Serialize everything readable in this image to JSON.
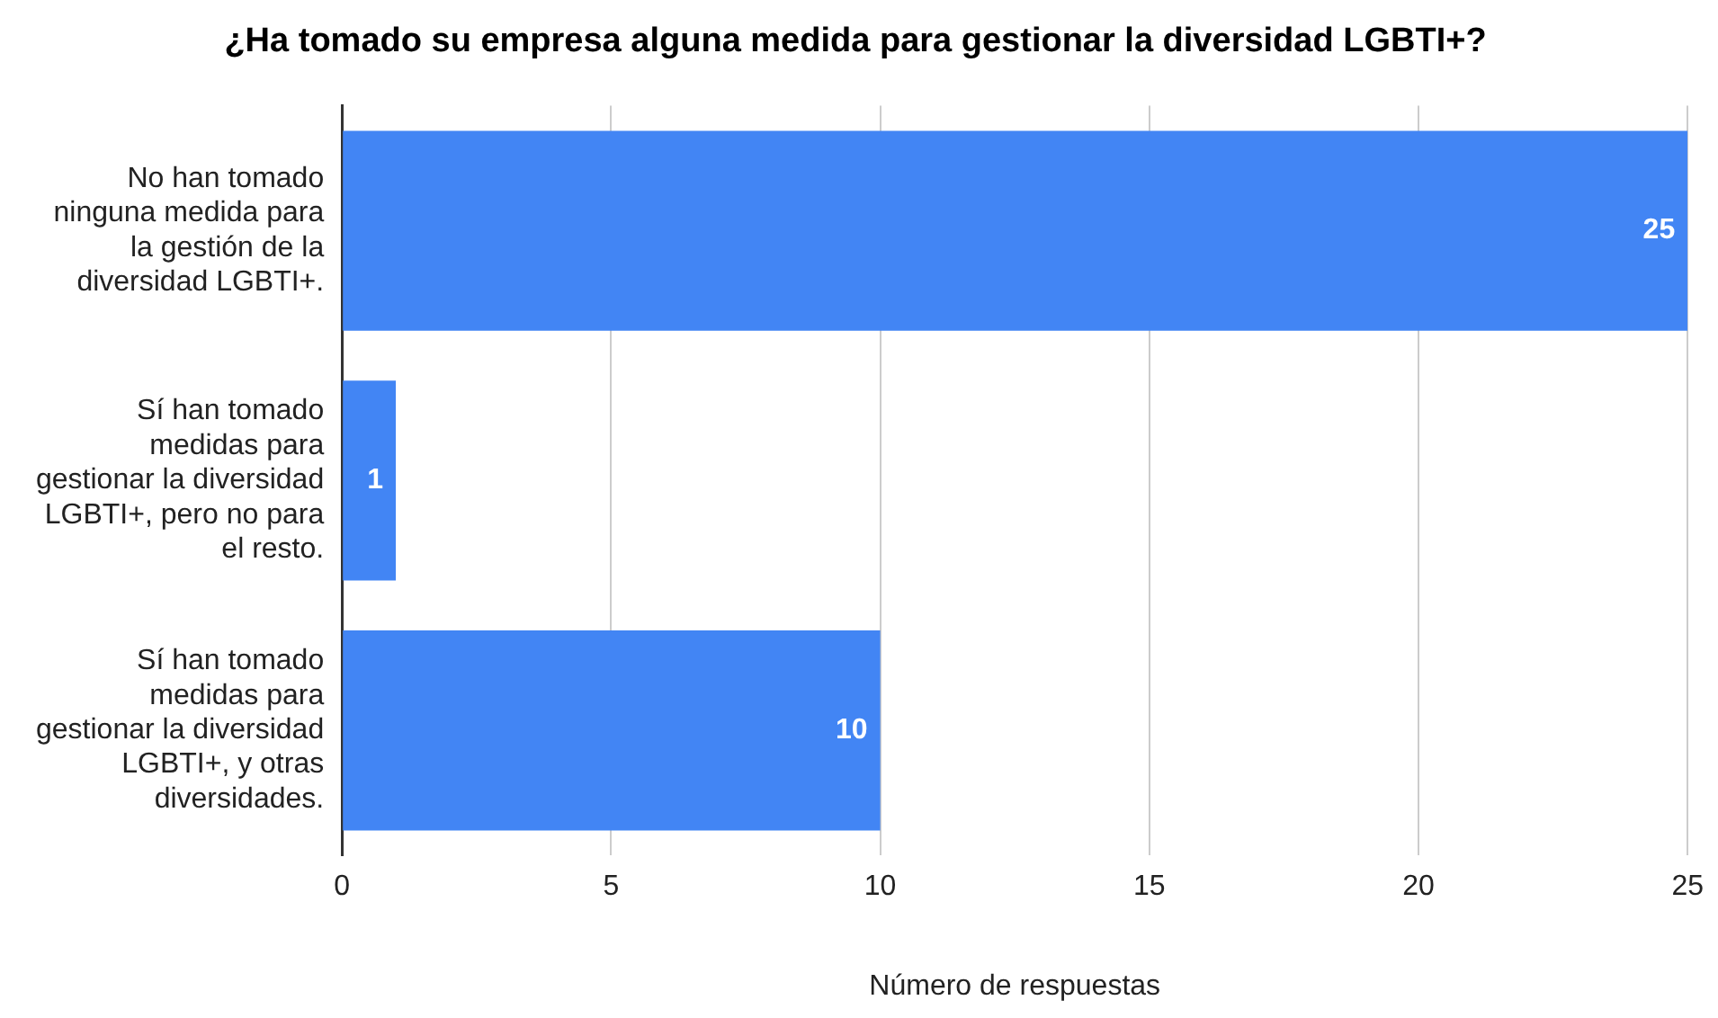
{
  "chart_data": {
    "type": "bar",
    "orientation": "horizontal",
    "title": "¿Ha tomado su empresa alguna medida para gestionar la diversidad LGBTI+?",
    "xlabel": "Número de respuestas",
    "categories": [
      "No han tomado ninguna medida para la gestión de la diversidad LGBTI+.",
      "Sí han tomado medidas para gestionar la diversidad LGBTI+, pero no para el resto.",
      "Sí han tomado medidas para gestionar la diversidad LGBTI+, y otras diversidades."
    ],
    "values": [
      25,
      1,
      10
    ],
    "color": "#4285f4",
    "xlim": [
      0,
      25
    ],
    "xticks": [
      0,
      5,
      10,
      15,
      20,
      25
    ],
    "grid": "x",
    "data_labels": true,
    "legend": false
  }
}
